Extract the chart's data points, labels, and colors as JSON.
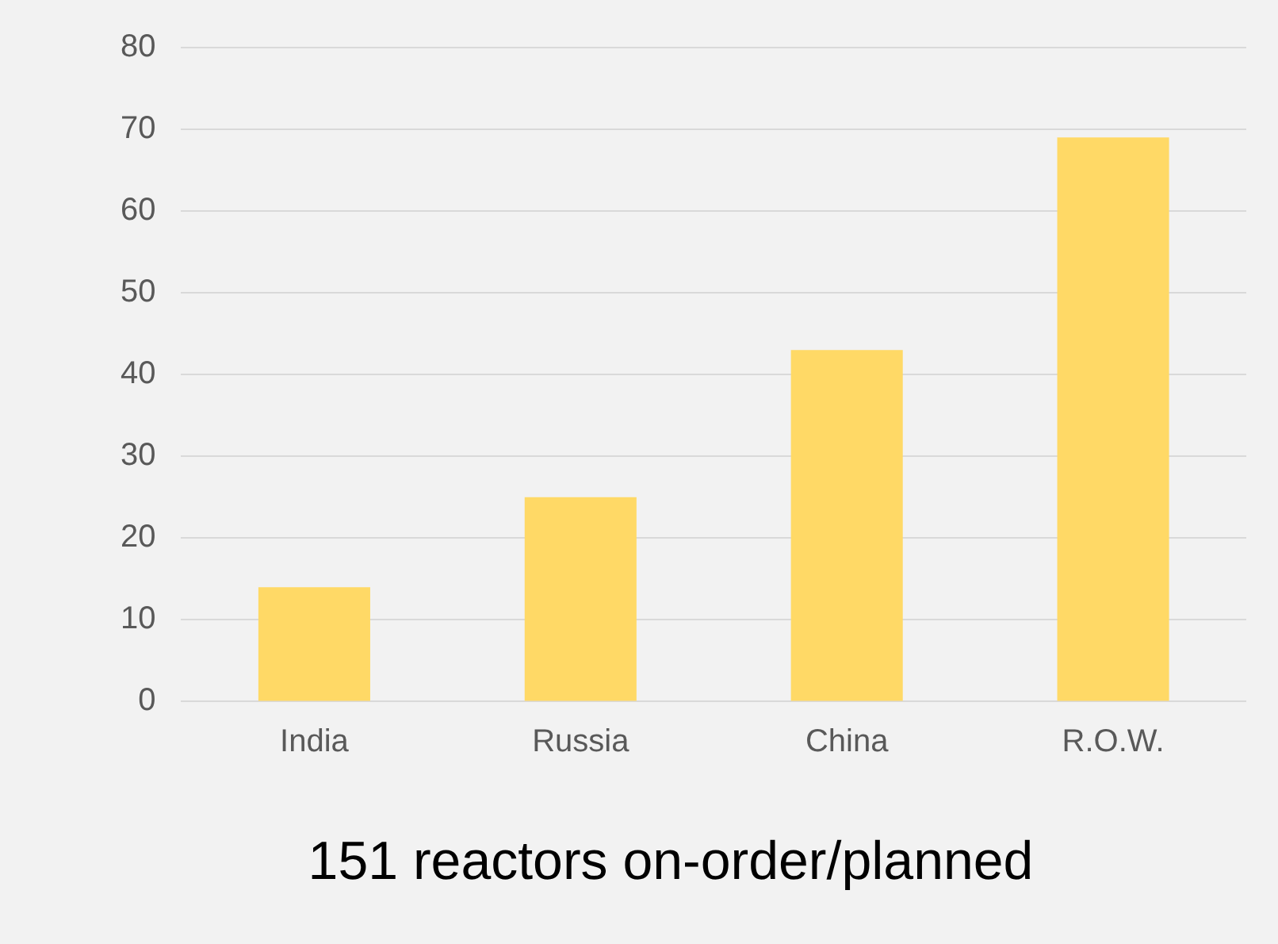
{
  "chart_data": {
    "type": "bar",
    "title": "151 reactors on-order/planned",
    "categories": [
      "India",
      "Russia",
      "China",
      "R.O.W."
    ],
    "values": [
      14,
      25,
      43,
      69
    ],
    "color": "#ffd966",
    "ylim": [
      0,
      80
    ],
    "yticks": [
      0,
      10,
      20,
      30,
      40,
      50,
      60,
      70,
      80
    ],
    "grid": "y",
    "legend": false
  }
}
